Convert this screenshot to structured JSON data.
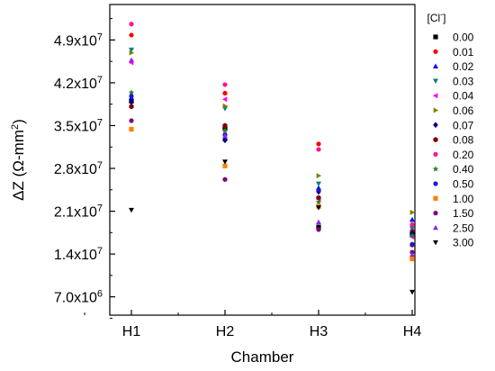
{
  "chart_data": {
    "type": "scatter",
    "xlabel": "Chamber",
    "ylabel_main": "ΔZ (Ω-mm",
    "ylabel_sup": "2",
    "ylabel_end": ")",
    "categories": [
      "H1",
      "H2",
      "H3",
      "H4"
    ],
    "ylim": [
      4000000,
      54800000
    ],
    "y_ticks": [
      {
        "value": 7000000,
        "mant": "7.0x10",
        "exp": "6"
      },
      {
        "value": 14000000,
        "mant": "1.4x10",
        "exp": "7"
      },
      {
        "value": 21000000,
        "mant": "2.1x10",
        "exp": "7"
      },
      {
        "value": 28000000,
        "mant": "2.8x10",
        "exp": "7"
      },
      {
        "value": 35000000,
        "mant": "3.5x10",
        "exp": "7"
      },
      {
        "value": 42000000,
        "mant": "4.2x10",
        "exp": "7"
      },
      {
        "value": 49000000,
        "mant": "4.9x10",
        "exp": "7"
      }
    ],
    "legend_title_main": "[Cl",
    "legend_title_sup": "-",
    "legend_title_end": "]",
    "legend_position": "right",
    "grid": false,
    "series": [
      {
        "name": "0.00",
        "marker": "square",
        "color": "#000000",
        "values": [
          39000000,
          34500000,
          18400000,
          17200000
        ]
      },
      {
        "name": "0.01",
        "marker": "circle",
        "color": "#ff0000",
        "values": [
          49800000,
          40300000,
          32000000,
          17800000
        ]
      },
      {
        "name": "0.02",
        "marker": "triangle-up",
        "color": "#0000ff",
        "values": [
          39600000,
          33000000,
          24800000,
          19600000
        ]
      },
      {
        "name": "0.03",
        "marker": "triangle-down",
        "color": "#008080",
        "values": [
          47400000,
          37800000,
          25500000,
          18200000
        ]
      },
      {
        "name": "0.04",
        "marker": "triangle-left",
        "color": "#ff00ff",
        "values": [
          45300000,
          39300000,
          23000000,
          16800000
        ]
      },
      {
        "name": "0.06",
        "marker": "triangle-right",
        "color": "#808000",
        "values": [
          46900000,
          38200000,
          26800000,
          20800000
        ]
      },
      {
        "name": "0.07",
        "marker": "diamond",
        "color": "#000080",
        "values": [
          38800000,
          32600000,
          24200000,
          17500000
        ]
      },
      {
        "name": "0.08",
        "marker": "hexagon",
        "color": "#800000",
        "values": [
          38100000,
          35000000,
          23200000,
          15500000
        ]
      },
      {
        "name": "0.20",
        "marker": "circle",
        "color": "#ff1493",
        "values": [
          51600000,
          41700000,
          31100000,
          18800000
        ]
      },
      {
        "name": "0.40",
        "marker": "star",
        "color": "#2e7d32",
        "values": [
          40400000,
          34200000,
          22500000,
          17000000
        ]
      },
      {
        "name": "0.50",
        "marker": "circle",
        "color": "#1a1ad0",
        "values": [
          39800000,
          33500000,
          24500000,
          15600000
        ]
      },
      {
        "name": "1.00",
        "marker": "square",
        "color": "#ff8000",
        "values": [
          34400000,
          28400000,
          21800000,
          13200000
        ]
      },
      {
        "name": "1.50",
        "marker": "circle",
        "color": "#800080",
        "values": [
          35800000,
          26200000,
          18000000,
          14300000
        ]
      },
      {
        "name": "2.50",
        "marker": "triangle-up",
        "color": "#8a2be2",
        "values": [
          45700000,
          33300000,
          19200000,
          13900000
        ]
      },
      {
        "name": "3.00",
        "marker": "triangle-down",
        "color": "#000000",
        "values": [
          21200000,
          29100000,
          21600000,
          7800000
        ]
      }
    ]
  }
}
